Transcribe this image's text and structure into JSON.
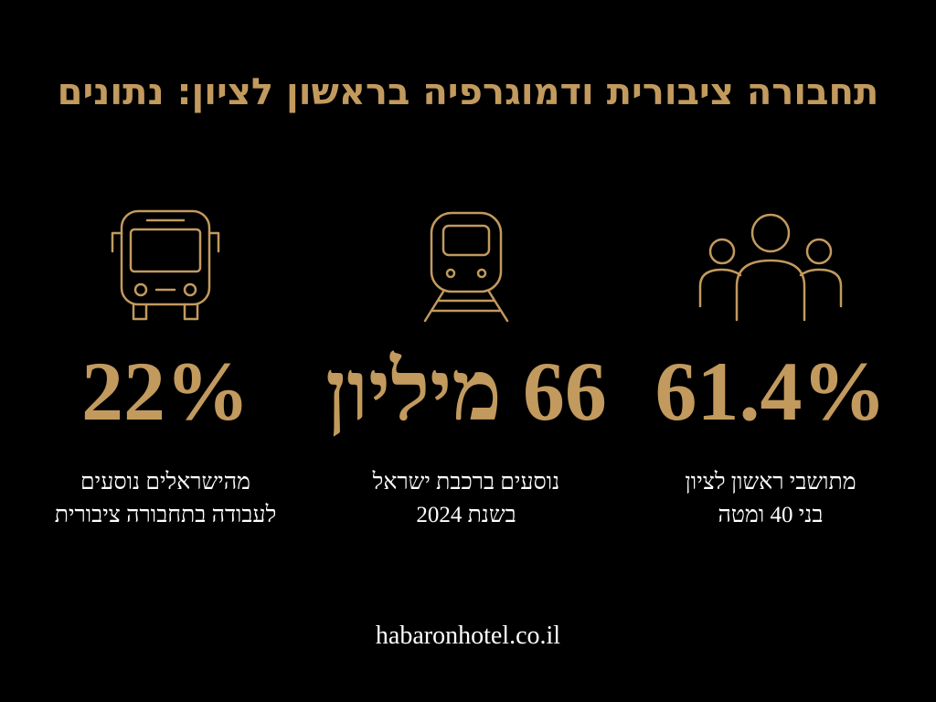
{
  "title": "תחבורה ציבורית ודמוגרפיה בראשון לציון: נתונים",
  "stats": [
    {
      "value": "61.4%",
      "lines": [
        "מתושבי ראשון לציון",
        "בני 40 ומטה"
      ]
    },
    {
      "value": "66 מיליון",
      "lines": [
        "נוסעים ברכבת ישראל",
        "בשנת 2024"
      ]
    },
    {
      "value": "22%",
      "lines": [
        "מהישראלים נוסעים",
        "לעבודה בתחבורה ציבורית"
      ]
    }
  ],
  "footer": "habaronhotel.co.il"
}
